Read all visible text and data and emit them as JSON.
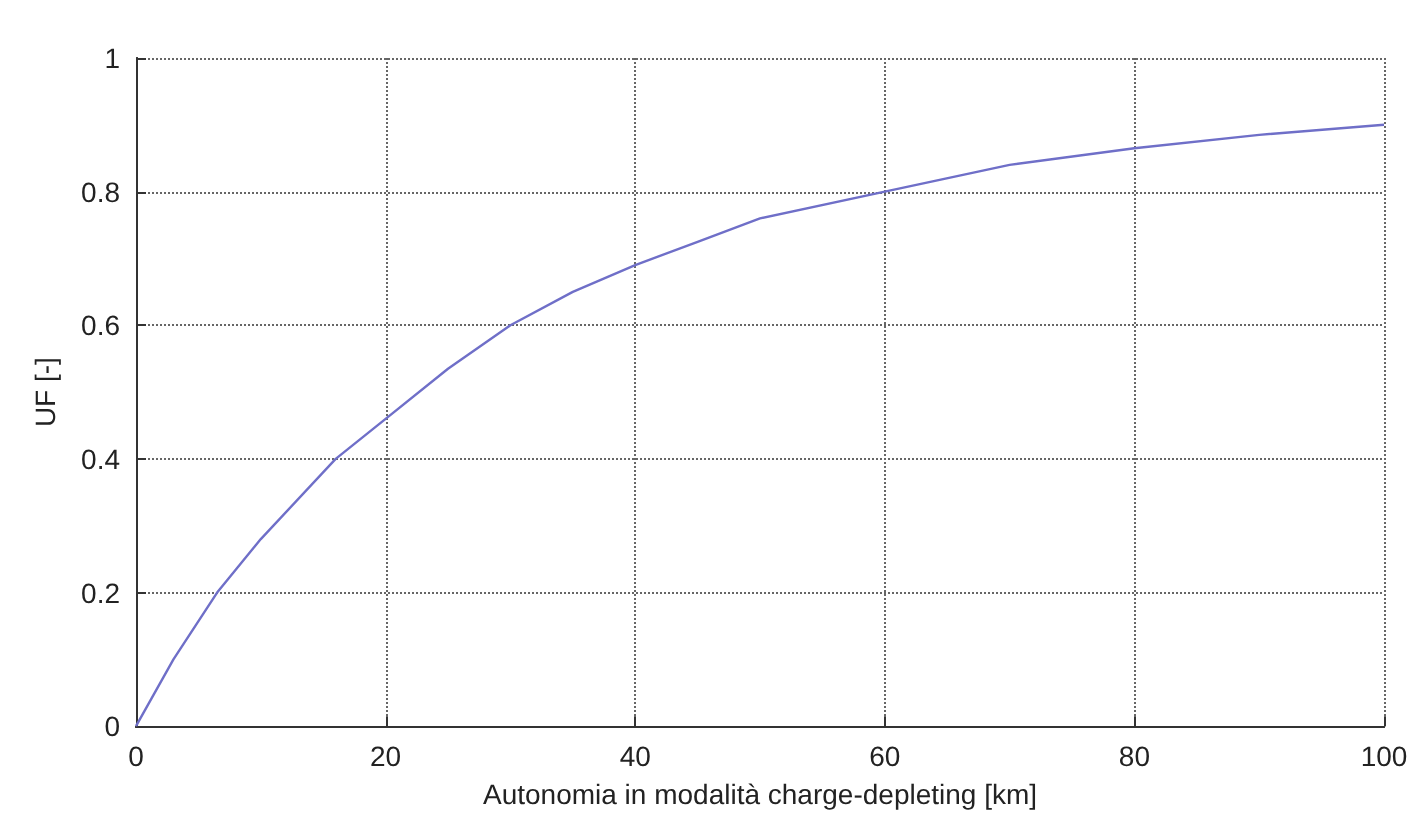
{
  "chart_data": {
    "type": "line",
    "xlabel": "Autonomia in modalità charge-depleting [km]",
    "ylabel": "UF [-]",
    "x": [
      0,
      3,
      6.5,
      10,
      16,
      20,
      25,
      30,
      35,
      40,
      45,
      50,
      60,
      70,
      80,
      90,
      100
    ],
    "series": [
      {
        "color": "#6f6fc8",
        "values": [
          0,
          0.1,
          0.2,
          0.28,
          0.4,
          0.46,
          0.535,
          0.6,
          0.65,
          0.69,
          0.725,
          0.76,
          0.8,
          0.84,
          0.865,
          0.885,
          0.9
        ]
      }
    ],
    "xlim": [
      0,
      100
    ],
    "xticks": [
      0,
      20,
      40,
      60,
      80,
      100
    ],
    "ylim": [
      0,
      1
    ],
    "yticks": [
      0,
      0.2,
      0.4,
      0.6,
      0.8,
      1
    ],
    "grid": true,
    "marker": "none",
    "line_style": "solid"
  }
}
